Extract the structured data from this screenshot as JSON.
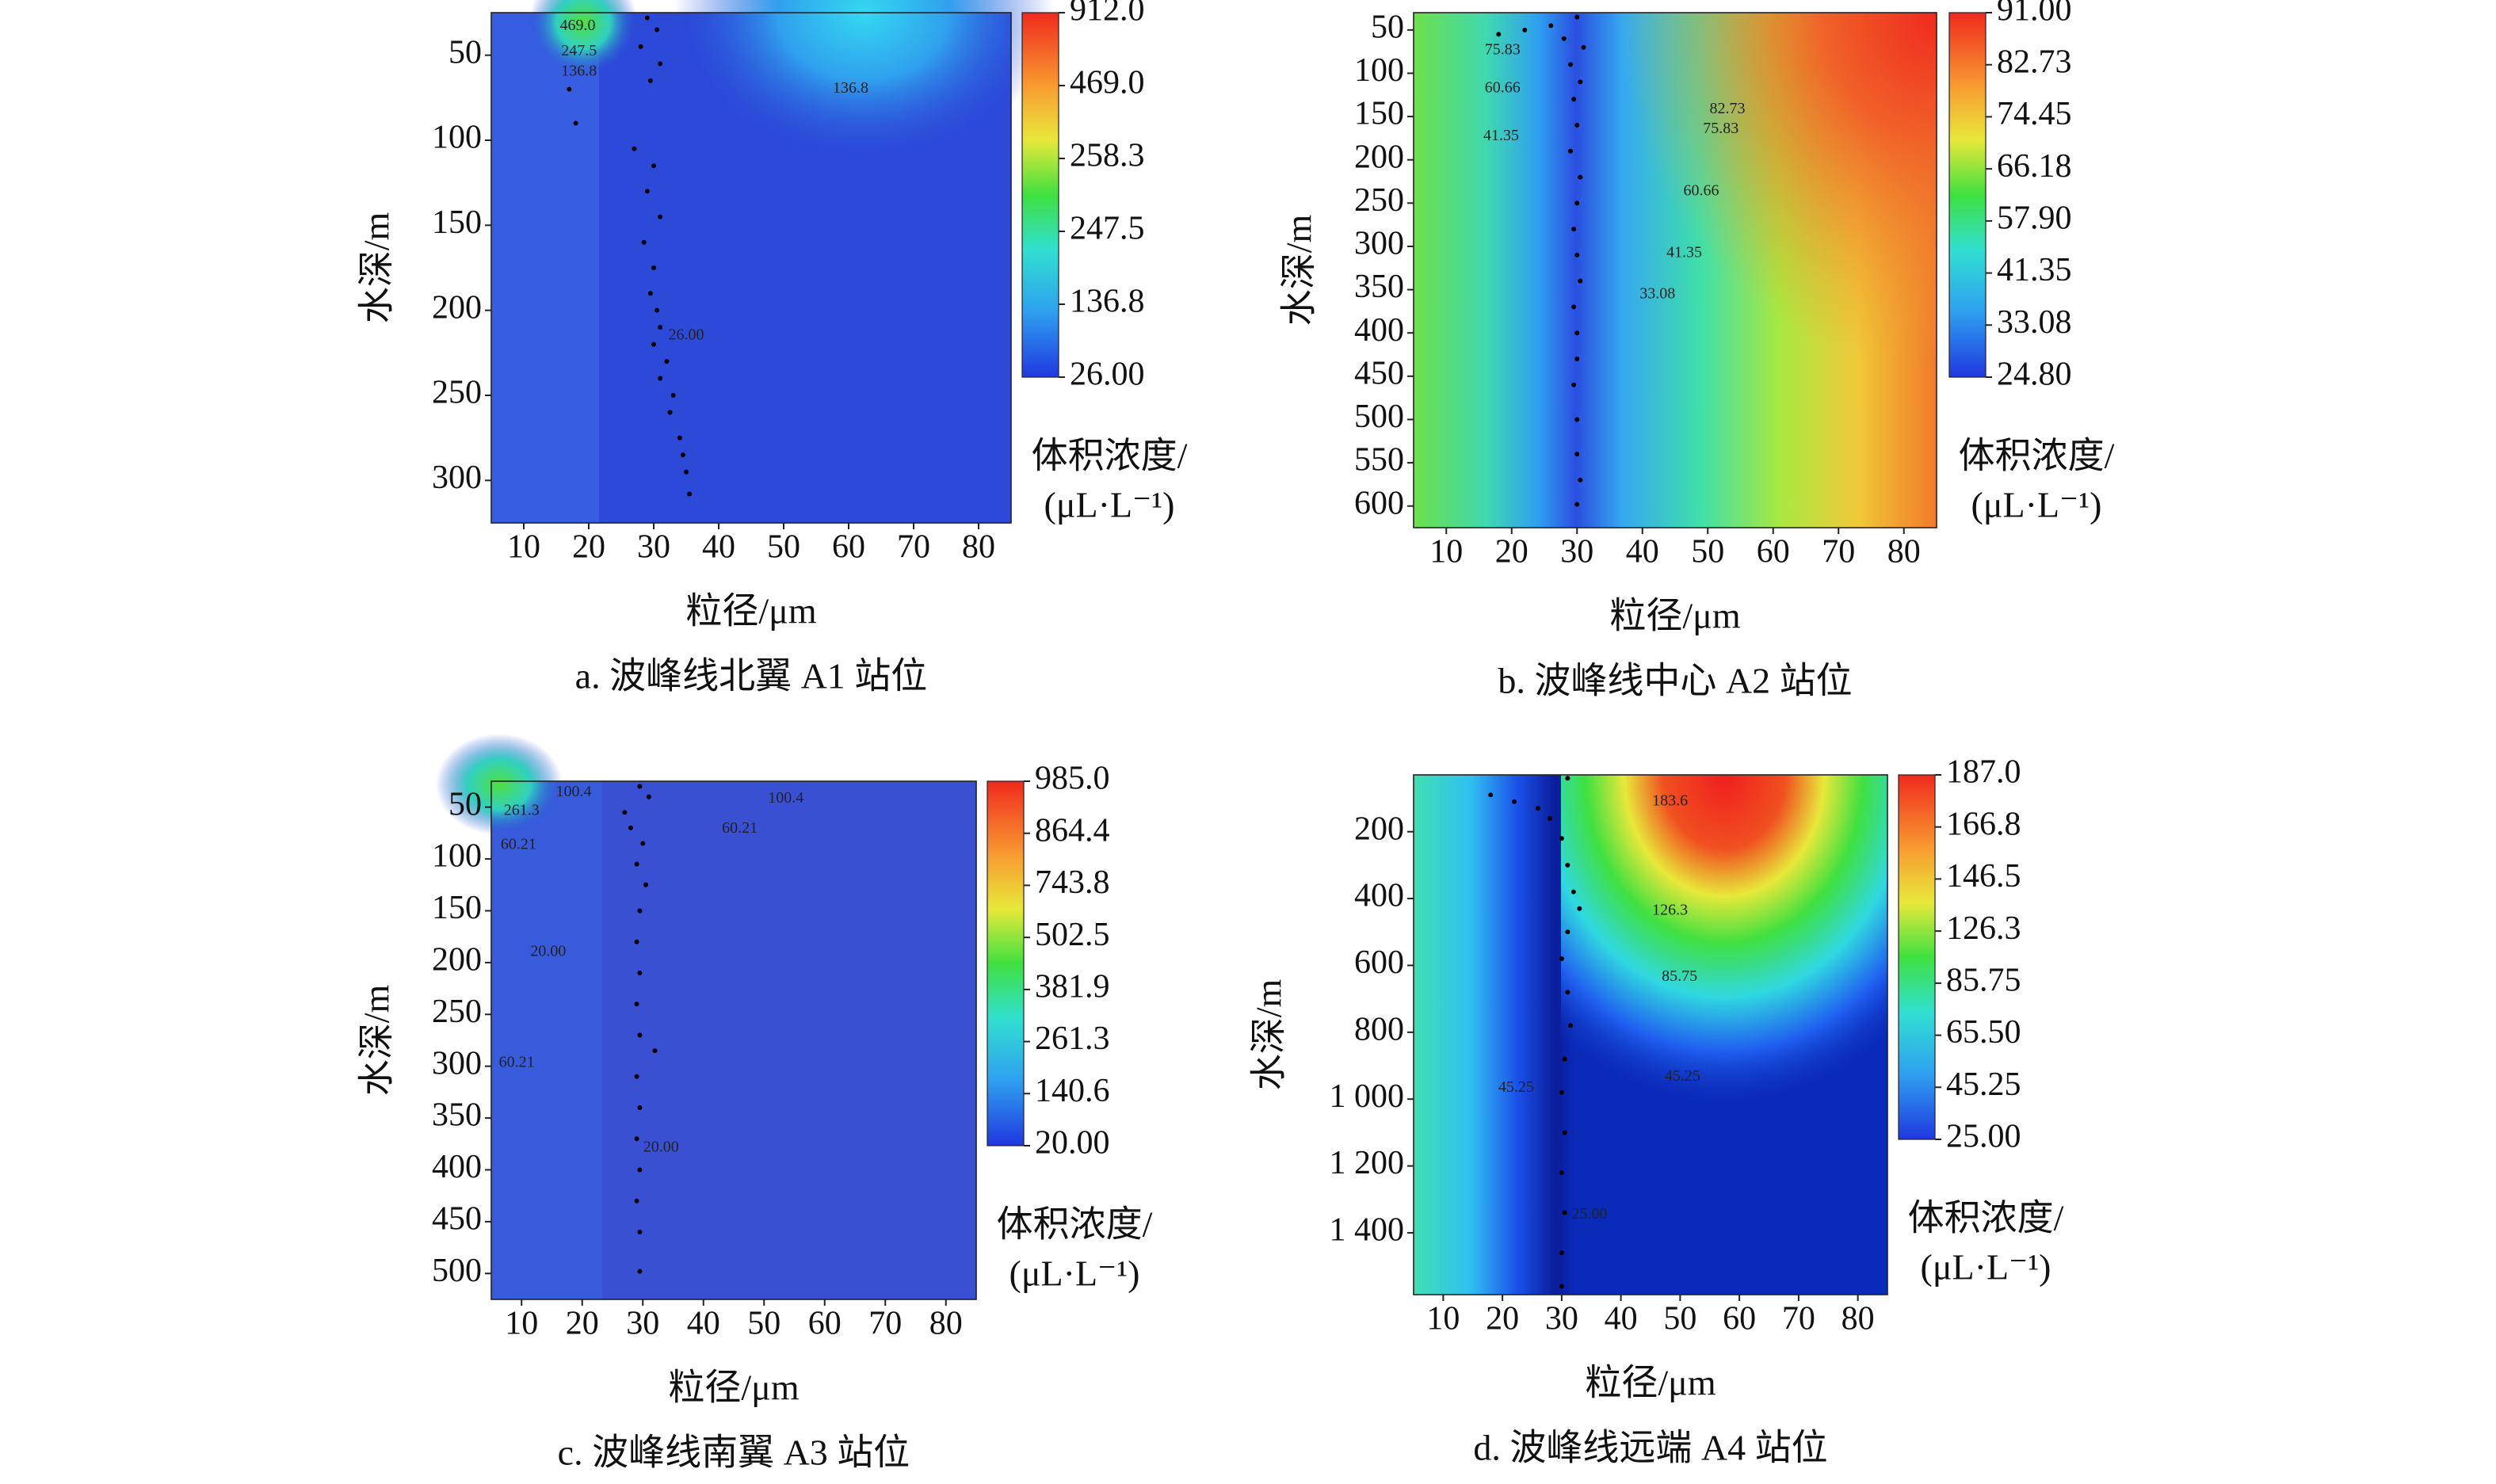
{
  "chart_data": [
    {
      "type": "contour",
      "caption": "a. 波峰线北翼 A1 站位",
      "xlabel": "粒径/μm",
      "ylabel": "水深/m",
      "colorbar_label": [
        "体积浓度/",
        "(μL·L⁻¹)"
      ],
      "xlim": [
        5,
        85
      ],
      "ylim": [
        25,
        325
      ],
      "xticks": [
        10,
        20,
        30,
        40,
        50,
        60,
        70,
        80
      ],
      "yticks": [
        50,
        100,
        150,
        200,
        250,
        300
      ],
      "cticks": [
        {
          "value": 912,
          "label": "912.0"
        },
        {
          "value": 469,
          "label": "469.0"
        },
        258.3,
        247.5,
        136.8,
        {
          "value": 26,
          "label": "26.00"
        }
      ],
      "contour_labels": [
        {
          "label": "469.0",
          "x": 18.3,
          "y": 33
        },
        {
          "label": "247.5",
          "x": 18.5,
          "y": 48
        },
        {
          "label": "136.8",
          "x": 18.5,
          "y": 60
        },
        {
          "label": "136.8",
          "x": 60.3,
          "y": 70
        },
        {
          "label": "26.00",
          "x": 35,
          "y": 215
        }
      ],
      "points": {
        "x": [
          29,
          30.5,
          28,
          31,
          29.5,
          17,
          18,
          27,
          30,
          29,
          31,
          28.5,
          30,
          29.5,
          30.5,
          31,
          30,
          32,
          31,
          33,
          32.5,
          34,
          34.5,
          35,
          35.5
        ],
        "y": [
          28,
          35,
          45,
          55,
          65,
          70,
          90,
          105,
          115,
          130,
          145,
          160,
          175,
          190,
          200,
          210,
          220,
          230,
          240,
          250,
          260,
          275,
          285,
          295,
          308
        ]
      }
    },
    {
      "type": "contour",
      "caption": "b. 波峰线中心 A2 站位",
      "xlabel": "粒径/μm",
      "ylabel": "水深/m",
      "colorbar_label": [
        "体积浓度/",
        "(μL·L⁻¹)"
      ],
      "xlim": [
        5,
        85
      ],
      "ylim": [
        30,
        625
      ],
      "xticks": [
        10,
        20,
        30,
        40,
        50,
        60,
        70,
        80
      ],
      "yticks": [
        50,
        100,
        150,
        200,
        250,
        300,
        350,
        400,
        450,
        500,
        550,
        600
      ],
      "cticks": [
        {
          "value": 91,
          "label": "91.00"
        },
        82.73,
        74.45,
        66.18,
        {
          "value": 57.9,
          "label": "57.90"
        },
        41.35,
        33.08,
        {
          "value": 24.8,
          "label": "24.80"
        }
      ],
      "contour_labels": [
        {
          "label": "75.83",
          "x": 18.6,
          "y": 74
        },
        {
          "label": "60.66",
          "x": 18.6,
          "y": 118
        },
        {
          "label": "41.35",
          "x": 18.4,
          "y": 173
        },
        {
          "label": "82.73",
          "x": 53,
          "y": 142
        },
        {
          "label": "75.83",
          "x": 52,
          "y": 165
        },
        {
          "label": "60.66",
          "x": 49,
          "y": 237
        },
        {
          "label": "41.35",
          "x": 46.4,
          "y": 308
        },
        {
          "label": "33.08",
          "x": 42.3,
          "y": 356
        }
      ],
      "points": {
        "x": [
          30,
          26,
          22,
          18,
          28,
          31,
          29,
          30.5,
          29.5,
          30,
          29,
          30.5,
          30,
          29.5,
          30,
          30.5,
          29.5,
          30,
          30,
          29.5,
          30,
          30,
          30.5,
          30
        ],
        "y": [
          35,
          45,
          50,
          55,
          60,
          70,
          90,
          110,
          130,
          160,
          190,
          220,
          250,
          280,
          310,
          340,
          370,
          400,
          430,
          460,
          500,
          540,
          570,
          598
        ]
      }
    },
    {
      "type": "contour",
      "caption": "c. 波峰线南翼 A3 站位",
      "xlabel": "粒径/μm",
      "ylabel": "水深/m",
      "colorbar_label": [
        "体积浓度/",
        "(μL·L⁻¹)"
      ],
      "xlim": [
        5,
        85
      ],
      "ylim": [
        25,
        525
      ],
      "xticks": [
        10,
        20,
        30,
        40,
        50,
        60,
        70,
        80
      ],
      "yticks": [
        50,
        100,
        150,
        200,
        250,
        300,
        350,
        400,
        450,
        500
      ],
      "cticks": [
        {
          "value": 985,
          "label": "985.0"
        },
        864.4,
        743.8,
        502.5,
        381.9,
        261.3,
        140.6,
        {
          "value": 20,
          "label": "20.00"
        }
      ],
      "contour_labels": [
        {
          "label": "100.4",
          "x": 18.6,
          "y": 36
        },
        {
          "label": "261.3",
          "x": 10,
          "y": 54
        },
        {
          "label": "60.21",
          "x": 9.5,
          "y": 87
        },
        {
          "label": "100.4",
          "x": 53.6,
          "y": 42
        },
        {
          "label": "60.21",
          "x": 46,
          "y": 71
        },
        {
          "label": "20.00",
          "x": 14.4,
          "y": 190
        },
        {
          "label": "60.21",
          "x": 9.2,
          "y": 297
        },
        {
          "label": "20.00",
          "x": 33,
          "y": 379
        }
      ],
      "points": {
        "x": [
          29.5,
          31,
          27,
          28,
          30,
          29,
          30.5,
          29.5,
          29,
          29.5,
          29,
          29.5,
          32,
          29,
          29.5,
          29,
          29.5,
          29,
          29.5,
          29.5
        ],
        "y": [
          30,
          40,
          55,
          70,
          85,
          105,
          125,
          150,
          180,
          210,
          240,
          270,
          285,
          310,
          340,
          370,
          400,
          430,
          460,
          498
        ]
      }
    },
    {
      "type": "contour",
      "caption": "d. 波峰线远端 A4 站位",
      "xlabel": "粒径/μm",
      "ylabel": "水深/m",
      "colorbar_label": [
        "体积浓度/",
        "(μL·L⁻¹)"
      ],
      "xlim": [
        5,
        85
      ],
      "ylim": [
        30,
        1585
      ],
      "xticks": [
        10,
        20,
        30,
        40,
        50,
        60,
        70,
        80
      ],
      "yticks": [
        200,
        400,
        600,
        800,
        {
          "value": 1000,
          "label": "1 000"
        },
        {
          "value": 1200,
          "label": "1 200"
        },
        {
          "value": 1400,
          "label": "1 400"
        }
      ],
      "cticks": [
        {
          "value": 187,
          "label": "187.0"
        },
        166.8,
        146.5,
        126.3,
        85.75,
        {
          "value": 65.5,
          "label": "65.50"
        },
        45.25,
        {
          "value": 25,
          "label": "25.00"
        }
      ],
      "contour_labels": [
        {
          "label": "183.6",
          "x": 48.3,
          "y": 110
        },
        {
          "label": "126.3",
          "x": 48.3,
          "y": 437
        },
        {
          "label": "85.75",
          "x": 49.9,
          "y": 636
        },
        {
          "label": "45.25",
          "x": 50.4,
          "y": 934
        },
        {
          "label": "45.25",
          "x": 22.3,
          "y": 967
        },
        {
          "label": "25.00",
          "x": 34.7,
          "y": 1346
        }
      ],
      "points": {
        "x": [
          31,
          18,
          22,
          26,
          28,
          30,
          31,
          32,
          33,
          31,
          30,
          31,
          31.5,
          30.5,
          30,
          30.5,
          30,
          30.5,
          30,
          30
        ],
        "y": [
          40,
          90,
          110,
          130,
          160,
          220,
          300,
          380,
          430,
          500,
          580,
          680,
          780,
          880,
          980,
          1100,
          1220,
          1340,
          1460,
          1560
        ]
      }
    }
  ]
}
